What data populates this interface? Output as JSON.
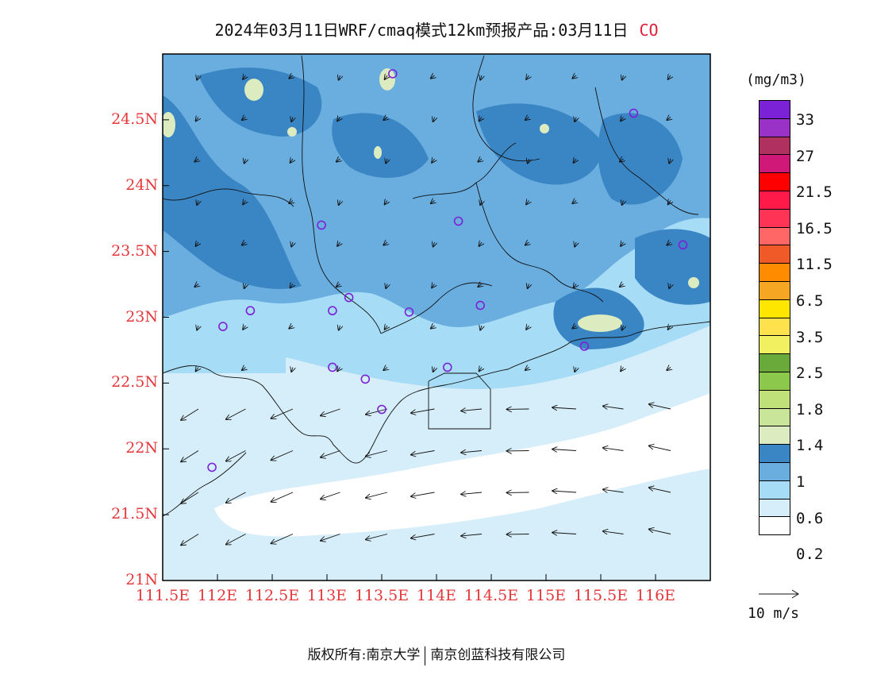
{
  "title": {
    "text": "2024年03月11日WRF/cmaq模式12km预报产品:03月11日",
    "pollutant": "CO"
  },
  "map": {
    "lat_labels": [
      "24.5N",
      "24N",
      "23.5N",
      "23N",
      "22.5N",
      "22N",
      "21.5N",
      "21N"
    ],
    "lon_labels": [
      "111.5E",
      "112E",
      "112.5E",
      "113E",
      "113.5E",
      "114E",
      "114.5E",
      "115E",
      "115.5E",
      "116E"
    ],
    "lat_range": [
      21,
      25
    ],
    "lon_range": [
      111.5,
      116.5
    ],
    "station_marker_color": "#7b22d6",
    "stations": [
      {
        "lon": 113.6,
        "lat": 24.85
      },
      {
        "lon": 115.8,
        "lat": 24.55
      },
      {
        "lon": 112.95,
        "lat": 23.7
      },
      {
        "lon": 114.2,
        "lat": 23.73
      },
      {
        "lon": 116.25,
        "lat": 23.55
      },
      {
        "lon": 112.3,
        "lat": 23.05
      },
      {
        "lon": 113.05,
        "lat": 23.05
      },
      {
        "lon": 113.2,
        "lat": 23.15
      },
      {
        "lon": 113.75,
        "lat": 23.04
      },
      {
        "lon": 114.4,
        "lat": 23.09
      },
      {
        "lon": 112.05,
        "lat": 22.93
      },
      {
        "lon": 115.35,
        "lat": 22.78
      },
      {
        "lon": 113.05,
        "lat": 22.62
      },
      {
        "lon": 113.35,
        "lat": 22.53
      },
      {
        "lon": 114.1,
        "lat": 22.62
      },
      {
        "lon": 113.5,
        "lat": 22.3
      },
      {
        "lon": 111.95,
        "lat": 21.86
      }
    ]
  },
  "colorbar": {
    "unit": "(mg/m3)",
    "colors": [
      "#7b22d6",
      "#9a32c8",
      "#b03060",
      "#d01878",
      "#ff0000",
      "#ff1a4a",
      "#ff3355",
      "#ff6666",
      "#f05a28",
      "#ff8c00",
      "#f5a623",
      "#ffe600",
      "#ffe14d",
      "#f0f060",
      "#6aaa3a",
      "#8cc84b",
      "#c0e07a",
      "#c9e59a",
      "#ddecc0",
      "#3a85c4",
      "#6aaee0",
      "#a6dcf5",
      "#d6eef9",
      "#ffffff"
    ],
    "labels": [
      "33",
      "27",
      "21.5",
      "16.5",
      "11.5",
      "6.5",
      "3.5",
      "2.5",
      "1.8",
      "1.4",
      "1",
      "0.6",
      "0.2"
    ]
  },
  "wind": {
    "reference_label": "10 m/s"
  },
  "footer": {
    "left": "版权所有:南京大学",
    "right": "南京创蓝科技有限公司"
  }
}
